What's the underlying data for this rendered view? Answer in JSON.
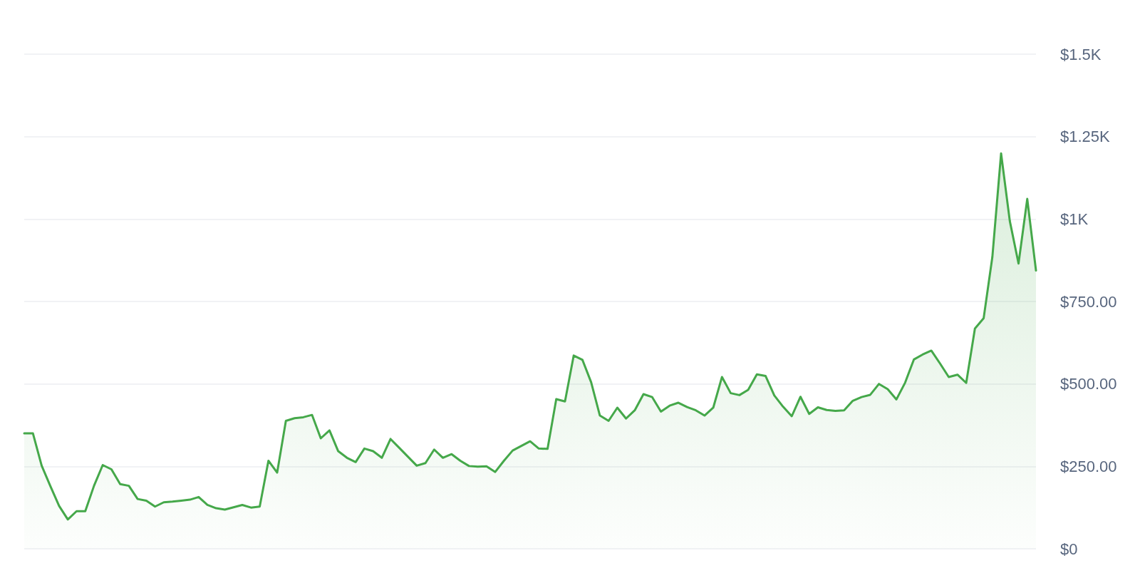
{
  "chart_data": {
    "type": "area",
    "categories": [
      null,
      null,
      null,
      null,
      null,
      null,
      null,
      null,
      null,
      null,
      null,
      null,
      null,
      null,
      null,
      null,
      null,
      null,
      null,
      null,
      null,
      null,
      null,
      null,
      null,
      null,
      null,
      null,
      null,
      null,
      null,
      null,
      null,
      null,
      null,
      null,
      null,
      null,
      null,
      null,
      null,
      null,
      null,
      null,
      null,
      null,
      null,
      null,
      null,
      null,
      null,
      null,
      null,
      null,
      null,
      null,
      null,
      null,
      null,
      null,
      null,
      null,
      null,
      null,
      null,
      null,
      null,
      null,
      null,
      null,
      null,
      null,
      null,
      null,
      null,
      null,
      null,
      null,
      null,
      null,
      null,
      null,
      null,
      null,
      null,
      null,
      null,
      null,
      null,
      null,
      null,
      null,
      null,
      null,
      null,
      null,
      null,
      null,
      null,
      null,
      null,
      null,
      null,
      null,
      null,
      null,
      null,
      null,
      null,
      null,
      null,
      null,
      null,
      null,
      null,
      null,
      null
    ],
    "series": [
      {
        "color": "#45a84a",
        "values": [
          350,
          350,
          252,
          190,
          130,
          89,
          114,
          114,
          191,
          254,
          241,
          196,
          191,
          151,
          146,
          128,
          141,
          143,
          146,
          149,
          157,
          133,
          123,
          119,
          126,
          133,
          125,
          128,
          267,
          231,
          388,
          396,
          399,
          406,
          335,
          359,
          296,
          276,
          263,
          304,
          296,
          276,
          333,
          306,
          279,
          252,
          260,
          301,
          276,
          287,
          267,
          251,
          249,
          250,
          233,
          267,
          298,
          312,
          326,
          304,
          303,
          454,
          447,
          586,
          573,
          505,
          404,
          388,
          428,
          395,
          420,
          469,
          460,
          416,
          434,
          443,
          430,
          420,
          404,
          428,
          521,
          472,
          466,
          482,
          529,
          524,
          465,
          431,
          402,
          461,
          409,
          429,
          421,
          418,
          420,
          449,
          460,
          467,
          500,
          484,
          453,
          504,
          574,
          589,
          601,
          562,
          521,
          528,
          503,
          668,
          699,
          885,
          1199,
          994,
          865,
          1061,
          844
        ]
      }
    ],
    "ylim": [
      0,
      1500
    ],
    "yticks": [
      {
        "value": 0,
        "label": "$0"
      },
      {
        "value": 250,
        "label": "$250.00"
      },
      {
        "value": 500,
        "label": "$500.00"
      },
      {
        "value": 750,
        "label": "$750.00"
      },
      {
        "value": 1000,
        "label": "$1K"
      },
      {
        "value": 1250,
        "label": "$1.25K"
      },
      {
        "value": 1500,
        "label": "$1.5K"
      }
    ],
    "grid": "y",
    "tick_labels": "y"
  }
}
